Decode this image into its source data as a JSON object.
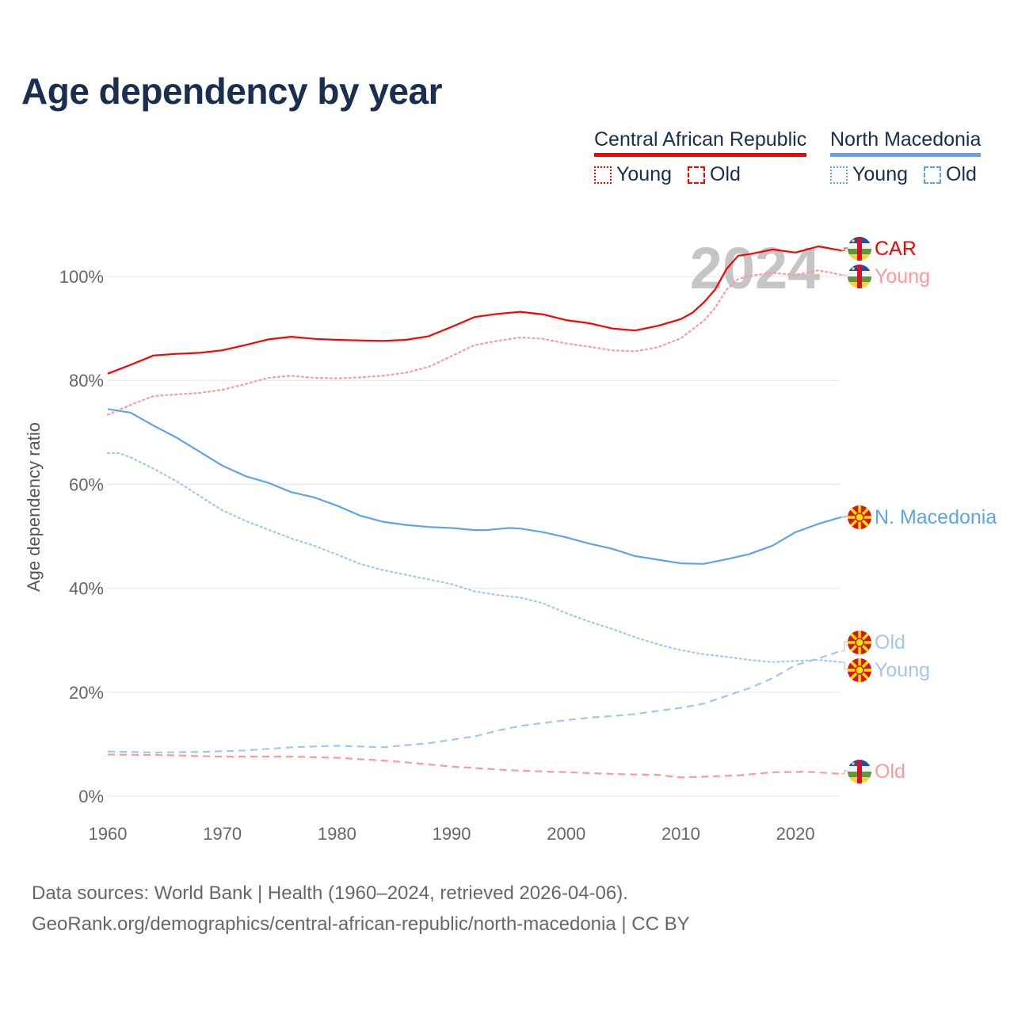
{
  "title": "Age dependency by year",
  "legend": {
    "car": {
      "name": "Central African Republic",
      "young": "Young",
      "old": "Old"
    },
    "nm": {
      "name": "North Macedonia",
      "young": "Young",
      "old": "Old"
    }
  },
  "footer": {
    "line1": "Data sources: World Bank | Health (1960–2024, retrieved 2026-04-06).",
    "line2": "GeoRank.org/demographics/central-african-republic/north-macedonia | CC BY"
  },
  "colors": {
    "car": "#ff0000",
    "car_light": "#ff9999",
    "nm": "#5fa3e8",
    "nm_light": "#9fc7f0"
  },
  "chart_data": {
    "type": "line",
    "title": "Age dependency by year",
    "year_watermark": "2024",
    "xlabel": "",
    "ylabel": "Age dependency ratio",
    "xlim": [
      1960,
      2024
    ],
    "ylim": [
      0,
      105
    ],
    "x_ticks": [
      "1960",
      "1970",
      "1980",
      "1990",
      "2000",
      "2010",
      "2020"
    ],
    "y_ticks": [
      "0%",
      "20%",
      "40%",
      "60%",
      "80%",
      "100%"
    ],
    "y_tick_values": [
      0,
      20,
      40,
      60,
      80,
      100
    ],
    "series": [
      {
        "name": "Central African Republic",
        "label": "CAR",
        "country": "car",
        "style": "solid",
        "color": "#ff0000",
        "points": [
          [
            1960,
            81.3
          ],
          [
            1962,
            83
          ],
          [
            1964,
            84.8
          ],
          [
            1966,
            85.1
          ],
          [
            1968,
            85.3
          ],
          [
            1970,
            85.8
          ],
          [
            1972,
            86.8
          ],
          [
            1974,
            87.9
          ],
          [
            1976,
            88.4
          ],
          [
            1978,
            88
          ],
          [
            1980,
            87.8
          ],
          [
            1982,
            87.7
          ],
          [
            1984,
            87.6
          ],
          [
            1986,
            87.8
          ],
          [
            1988,
            88.5
          ],
          [
            1990,
            90.3
          ],
          [
            1992,
            92.2
          ],
          [
            1994,
            92.8
          ],
          [
            1996,
            93.2
          ],
          [
            1998,
            92.7
          ],
          [
            2000,
            91.6
          ],
          [
            2002,
            91
          ],
          [
            2004,
            90
          ],
          [
            2006,
            89.6
          ],
          [
            2008,
            90.5
          ],
          [
            2010,
            91.8
          ],
          [
            2011,
            93
          ],
          [
            2012,
            95
          ],
          [
            2013,
            97.5
          ],
          [
            2014,
            101.5
          ],
          [
            2015,
            104
          ],
          [
            2016,
            104.3
          ],
          [
            2018,
            105.2
          ],
          [
            2020,
            104.6
          ],
          [
            2022,
            105.8
          ],
          [
            2024,
            105
          ]
        ]
      },
      {
        "name": "Central African Republic Young",
        "label": "Young",
        "country": "car",
        "style": "dotted",
        "color": "#ff9999",
        "points": [
          [
            1960,
            73.4
          ],
          [
            1962,
            75.3
          ],
          [
            1964,
            77
          ],
          [
            1966,
            77.3
          ],
          [
            1968,
            77.6
          ],
          [
            1970,
            78.2
          ],
          [
            1972,
            79.3
          ],
          [
            1974,
            80.5
          ],
          [
            1976,
            80.9
          ],
          [
            1978,
            80.5
          ],
          [
            1980,
            80.4
          ],
          [
            1982,
            80.6
          ],
          [
            1984,
            80.9
          ],
          [
            1986,
            81.5
          ],
          [
            1988,
            82.6
          ],
          [
            1990,
            84.7
          ],
          [
            1992,
            86.8
          ],
          [
            1994,
            87.6
          ],
          [
            1996,
            88.3
          ],
          [
            1998,
            88
          ],
          [
            2000,
            87.1
          ],
          [
            2002,
            86.5
          ],
          [
            2004,
            85.8
          ],
          [
            2006,
            85.6
          ],
          [
            2008,
            86.4
          ],
          [
            2010,
            88.1
          ],
          [
            2012,
            91.5
          ],
          [
            2013,
            94
          ],
          [
            2014,
            97.5
          ],
          [
            2015,
            99.5
          ],
          [
            2016,
            100.1
          ],
          [
            2018,
            100.7
          ],
          [
            2020,
            100.3
          ],
          [
            2022,
            101.2
          ],
          [
            2024,
            100.3
          ]
        ]
      },
      {
        "name": "North Macedonia",
        "label": "N. Macedonia",
        "country": "nm",
        "style": "solid",
        "color": "#5fa3e8",
        "points": [
          [
            1960,
            74.5
          ],
          [
            1962,
            73.8
          ],
          [
            1964,
            71.3
          ],
          [
            1966,
            69
          ],
          [
            1968,
            66.3
          ],
          [
            1970,
            63.6
          ],
          [
            1972,
            61.6
          ],
          [
            1974,
            60.3
          ],
          [
            1976,
            58.5
          ],
          [
            1978,
            57.5
          ],
          [
            1980,
            55.9
          ],
          [
            1982,
            54
          ],
          [
            1984,
            52.8
          ],
          [
            1986,
            52.2
          ],
          [
            1988,
            51.8
          ],
          [
            1990,
            51.6
          ],
          [
            1992,
            51.2
          ],
          [
            1993,
            51.2
          ],
          [
            1995,
            51.6
          ],
          [
            1996,
            51.5
          ],
          [
            1998,
            50.8
          ],
          [
            2000,
            49.8
          ],
          [
            2002,
            48.6
          ],
          [
            2004,
            47.6
          ],
          [
            2006,
            46.2
          ],
          [
            2008,
            45.5
          ],
          [
            2010,
            44.8
          ],
          [
            2012,
            44.7
          ],
          [
            2014,
            45.6
          ],
          [
            2016,
            46.6
          ],
          [
            2018,
            48.2
          ],
          [
            2020,
            50.8
          ],
          [
            2022,
            52.4
          ],
          [
            2024,
            53.7
          ]
        ]
      },
      {
        "name": "North Macedonia Old",
        "label": "Old",
        "country": "nm",
        "style": "dashed",
        "color": "#9fc7f0",
        "points": [
          [
            1960,
            8.6
          ],
          [
            1964,
            8.4
          ],
          [
            1968,
            8.5
          ],
          [
            1972,
            8.8
          ],
          [
            1976,
            9.4
          ],
          [
            1980,
            9.7
          ],
          [
            1984,
            9.4
          ],
          [
            1988,
            10.2
          ],
          [
            1992,
            11.5
          ],
          [
            1994,
            12.6
          ],
          [
            1996,
            13.5
          ],
          [
            1998,
            14.1
          ],
          [
            2000,
            14.6
          ],
          [
            2002,
            15.1
          ],
          [
            2004,
            15.4
          ],
          [
            2006,
            15.8
          ],
          [
            2008,
            16.4
          ],
          [
            2010,
            17
          ],
          [
            2012,
            17.8
          ],
          [
            2014,
            19.3
          ],
          [
            2016,
            20.8
          ],
          [
            2018,
            22.7
          ],
          [
            2020,
            25.2
          ],
          [
            2022,
            26.5
          ],
          [
            2024,
            28
          ]
        ]
      },
      {
        "name": "North Macedonia Young",
        "label": "Young",
        "country": "nm",
        "style": "dotted",
        "color": "#9fc7f0",
        "points": [
          [
            1960,
            66
          ],
          [
            1961,
            66
          ],
          [
            1962,
            65.2
          ],
          [
            1964,
            63
          ],
          [
            1966,
            60.6
          ],
          [
            1968,
            57.8
          ],
          [
            1970,
            55
          ],
          [
            1972,
            53
          ],
          [
            1974,
            51.3
          ],
          [
            1976,
            49.6
          ],
          [
            1978,
            48.2
          ],
          [
            1980,
            46.5
          ],
          [
            1982,
            44.7
          ],
          [
            1984,
            43.5
          ],
          [
            1986,
            42.6
          ],
          [
            1988,
            41.7
          ],
          [
            1990,
            40.8
          ],
          [
            1992,
            39.4
          ],
          [
            1994,
            38.7
          ],
          [
            1996,
            38.2
          ],
          [
            1998,
            37.1
          ],
          [
            2000,
            35.2
          ],
          [
            2002,
            33.6
          ],
          [
            2004,
            32.2
          ],
          [
            2006,
            30.6
          ],
          [
            2008,
            29.2
          ],
          [
            2010,
            28.1
          ],
          [
            2012,
            27.3
          ],
          [
            2014,
            26.8
          ],
          [
            2016,
            26.2
          ],
          [
            2018,
            25.8
          ],
          [
            2020,
            26
          ],
          [
            2022,
            26.2
          ],
          [
            2024,
            25.8
          ]
        ]
      },
      {
        "name": "Central African Republic Old",
        "label": "Old",
        "country": "car",
        "style": "dashed",
        "color": "#ff9999",
        "points": [
          [
            1960,
            8
          ],
          [
            1965,
            7.9
          ],
          [
            1970,
            7.6
          ],
          [
            1976,
            7.6
          ],
          [
            1980,
            7.4
          ],
          [
            1985,
            6.7
          ],
          [
            1990,
            5.7
          ],
          [
            1995,
            5
          ],
          [
            2000,
            4.6
          ],
          [
            2005,
            4.2
          ],
          [
            2008,
            4.1
          ],
          [
            2010,
            3.6
          ],
          [
            2015,
            4
          ],
          [
            2018,
            4.6
          ],
          [
            2021,
            4.7
          ],
          [
            2024,
            4.3
          ]
        ]
      }
    ]
  }
}
